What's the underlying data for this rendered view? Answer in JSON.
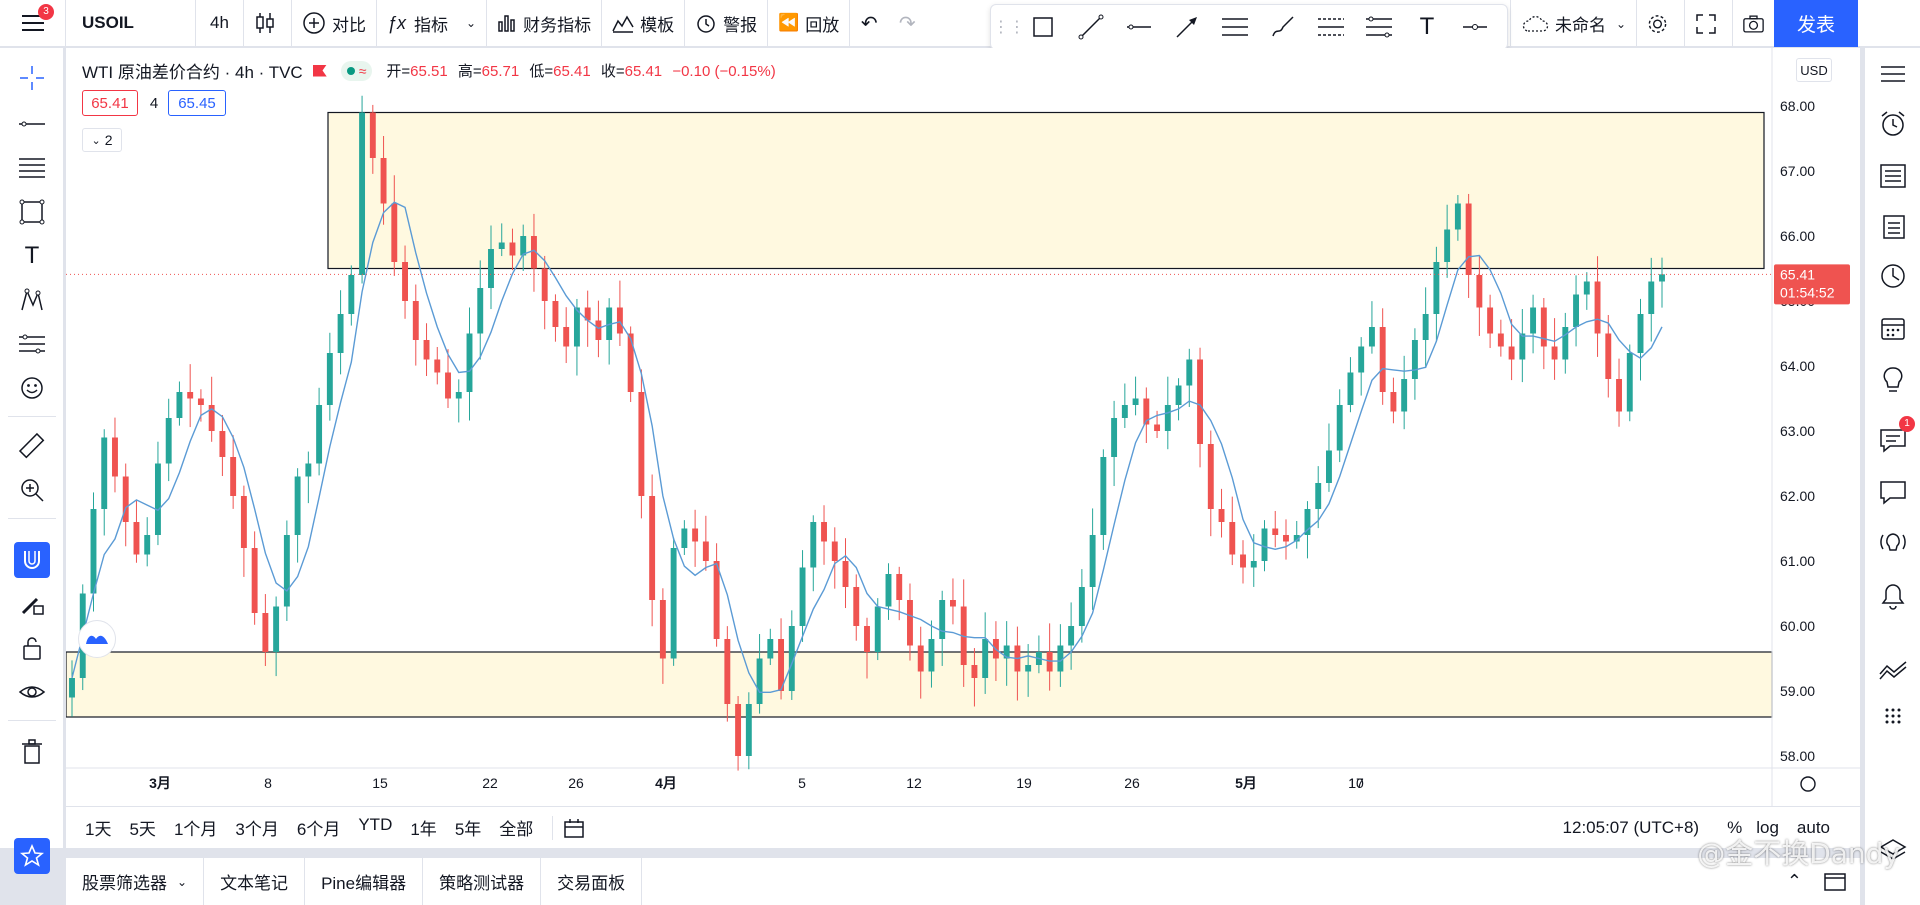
{
  "topbar": {
    "menu_badge": "3",
    "symbol": "USOIL",
    "interval": "4h",
    "compare_label": "对比",
    "indicators_label": "指标",
    "financials_label": "财务指标",
    "templates_label": "模板",
    "alert_label": "警报",
    "replay_label": "回放",
    "layout_name": "未命名",
    "publish_label": "发表"
  },
  "legend": {
    "title": "WTI 原油差价合约 · 4h · TVC",
    "open_label": "开=",
    "open": "65.51",
    "high_label": "高=",
    "high": "65.71",
    "low_label": "低=",
    "low": "65.41",
    "close_label": "收=",
    "close": "65.41",
    "change": "−0.10 (−0.15%)",
    "bid": "65.41",
    "spread": "4",
    "ask": "65.45",
    "collapsed_count": "2"
  },
  "price_axis": {
    "currency": "USD",
    "ticks": [
      "68.00",
      "67.00",
      "66.00",
      "65.00",
      "64.00",
      "63.00",
      "62.00",
      "61.00",
      "60.00",
      "59.00",
      "58.00"
    ],
    "last_price": "65.41",
    "countdown": "01:54:52"
  },
  "time_axis": {
    "ticks": [
      {
        "label": "3月",
        "bold": true
      },
      {
        "label": "8"
      },
      {
        "label": "15"
      },
      {
        "label": "22"
      },
      {
        "label": "26"
      },
      {
        "label": "4月",
        "bold": true
      },
      {
        "label": "5"
      },
      {
        "label": "12"
      },
      {
        "label": "19"
      },
      {
        "label": "26"
      },
      {
        "label": "5月",
        "bold": true
      },
      {
        "label": "10"
      },
      {
        "label": "17"
      }
    ]
  },
  "chart_data": {
    "type": "candlestick",
    "symbol": "USOIL",
    "interval": "4h",
    "ylim": [
      57.8,
      68.7
    ],
    "zones": [
      {
        "from": 65.5,
        "to": 67.9
      },
      {
        "from": 58.6,
        "to": 59.6
      }
    ],
    "closes": [
      59.2,
      60.5,
      61.8,
      62.9,
      62.3,
      61.6,
      61.1,
      61.4,
      62.5,
      63.2,
      63.6,
      63.5,
      63.4,
      63.0,
      62.6,
      62.0,
      61.2,
      60.2,
      59.6,
      60.3,
      61.4,
      62.3,
      62.5,
      63.4,
      64.2,
      64.8,
      65.4,
      67.9,
      67.2,
      66.5,
      65.6,
      65.0,
      64.4,
      64.1,
      63.9,
      63.5,
      63.6,
      64.5,
      65.2,
      65.8,
      65.9,
      65.7,
      66.0,
      65.5,
      65.0,
      64.6,
      64.3,
      64.9,
      64.7,
      64.4,
      64.9,
      64.5,
      63.6,
      62.0,
      60.4,
      59.5,
      61.2,
      61.5,
      61.3,
      61.0,
      59.8,
      58.8,
      58.0,
      58.8,
      59.5,
      59.8,
      59.0,
      60.0,
      60.9,
      61.6,
      61.3,
      61.0,
      60.6,
      60.0,
      59.6,
      60.3,
      60.8,
      60.4,
      59.7,
      59.3,
      59.8,
      60.4,
      60.3,
      59.4,
      59.2,
      59.8,
      59.5,
      59.7,
      59.3,
      59.4,
      59.6,
      59.3,
      59.7,
      60.0,
      60.6,
      61.4,
      62.6,
      63.2,
      63.4,
      63.5,
      63.1,
      63.0,
      63.4,
      63.7,
      64.1,
      62.8,
      61.8,
      61.6,
      61.1,
      60.9,
      61.0,
      61.5,
      61.4,
      61.3,
      61.4,
      61.8,
      62.2,
      62.7,
      63.4,
      63.9,
      64.3,
      64.6,
      63.6,
      63.3,
      63.8,
      64.4,
      64.8,
      65.6,
      66.1,
      66.5,
      65.4,
      64.9,
      64.5,
      64.3,
      64.1,
      64.5,
      64.9,
      64.3,
      64.1,
      64.6,
      65.1,
      65.3,
      64.5,
      63.8,
      63.3,
      64.2,
      64.8,
      65.3,
      65.41
    ]
  },
  "range_bar": {
    "ranges": [
      "1天",
      "5天",
      "1个月",
      "3个月",
      "6个月",
      "YTD",
      "1年",
      "5年",
      "全部"
    ],
    "clock": "12:05:07 (UTC+8)",
    "percent_label": "%",
    "log_label": "log",
    "auto_label": "auto"
  },
  "bottom_tabs": [
    "股票筛选器",
    "文本笔记",
    "Pine编辑器",
    "策略测试器",
    "交易面板"
  ],
  "right_panel": {
    "chat_badge": "1"
  },
  "watermark": "@金不换Dandy",
  "colors": {
    "up": "#26a69a",
    "down": "#ef5350",
    "ma": "#5b9bd5",
    "zone": "#fff9e0",
    "accent": "#2962ff"
  }
}
